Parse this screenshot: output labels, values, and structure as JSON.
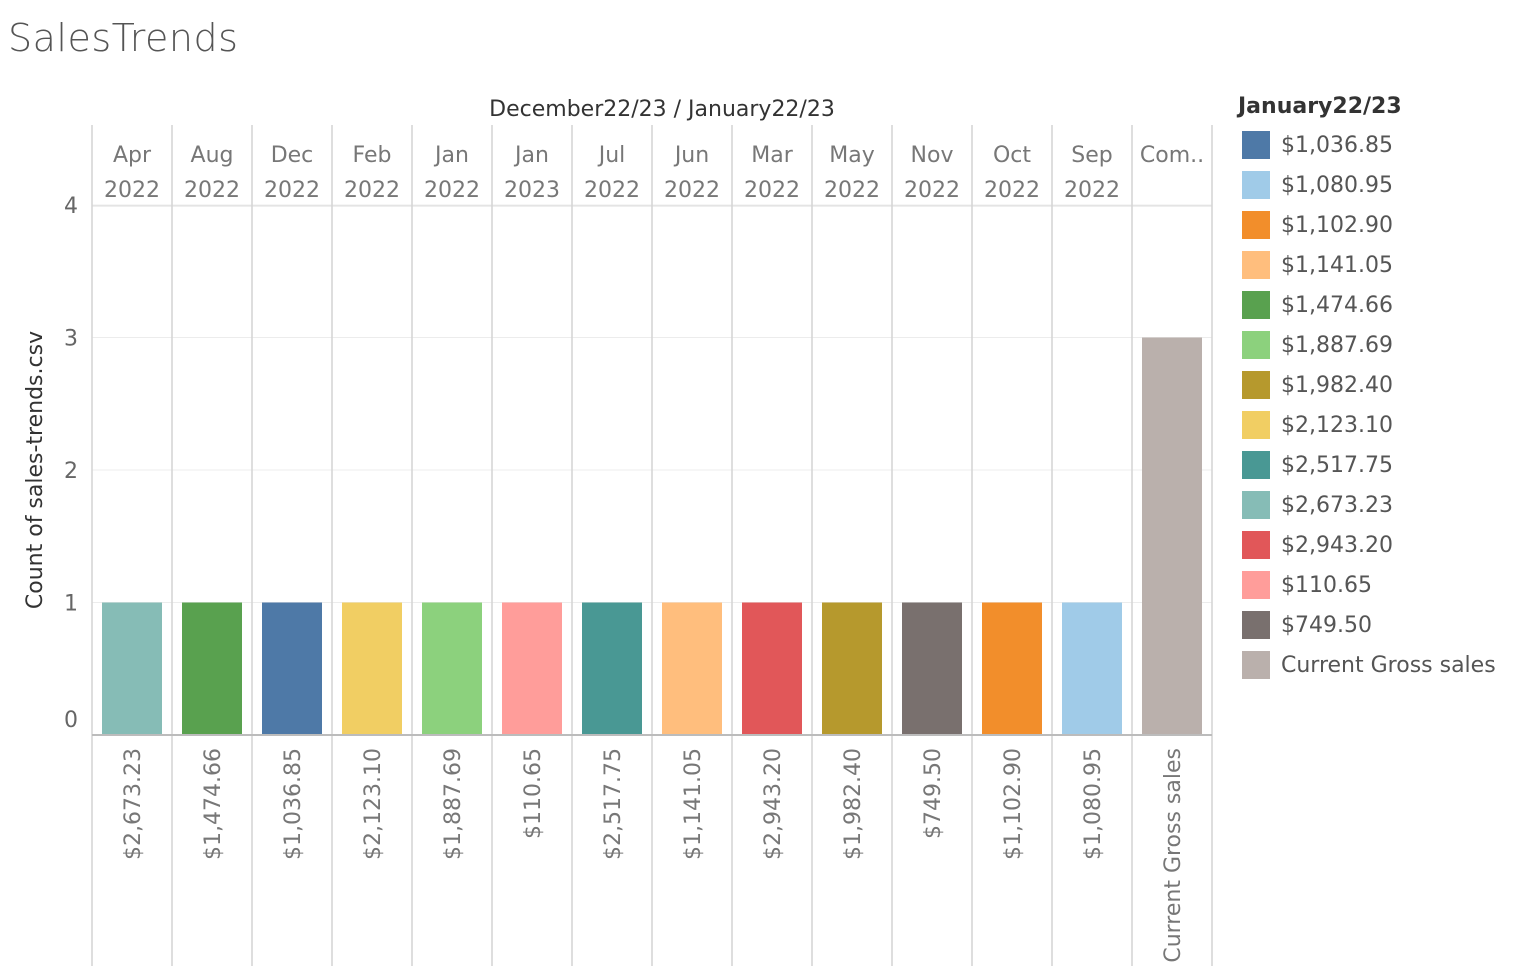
{
  "page": {
    "title": "SalesTrends"
  },
  "chart_data": {
    "type": "bar",
    "column_header_title": "December22/23  /  January22/23",
    "columns": [
      {
        "month": "Apr",
        "year": "2022",
        "label": "$2,673.23"
      },
      {
        "month": "Aug",
        "year": "2022",
        "label": "$1,474.66"
      },
      {
        "month": "Dec",
        "year": "2022",
        "label": "$1,036.85"
      },
      {
        "month": "Feb",
        "year": "2022",
        "label": "$2,123.10"
      },
      {
        "month": "Jan",
        "year": "2022",
        "label": "$1,887.69"
      },
      {
        "month": "Jan",
        "year": "2023",
        "label": "$110.65"
      },
      {
        "month": "Jul",
        "year": "2022",
        "label": "$2,517.75"
      },
      {
        "month": "Jun",
        "year": "2022",
        "label": "$1,141.05"
      },
      {
        "month": "Mar",
        "year": "2022",
        "label": "$2,943.20"
      },
      {
        "month": "May",
        "year": "2022",
        "label": "$1,982.40"
      },
      {
        "month": "Nov",
        "year": "2022",
        "label": "$749.50"
      },
      {
        "month": "Oct",
        "year": "2022",
        "label": "$1,102.90"
      },
      {
        "month": "Sep",
        "year": "2022",
        "label": "$1,080.95"
      },
      {
        "month": "Com..",
        "year": "",
        "label": "Current Gross sales"
      }
    ],
    "values": [
      1,
      1,
      1,
      1,
      1,
      1,
      1,
      1,
      1,
      1,
      1,
      1,
      1,
      3
    ],
    "ylabel": "Count of sales-trends.csv",
    "ylim": [
      0,
      4
    ],
    "yticks": [
      0,
      1,
      2,
      3,
      4
    ],
    "grid": true,
    "legend": {
      "title": "January22/23",
      "position": "right",
      "items": [
        {
          "label": "$1,036.85",
          "color": "#4e79a7"
        },
        {
          "label": "$1,080.95",
          "color": "#a0cbe8"
        },
        {
          "label": "$1,102.90",
          "color": "#f28e2b"
        },
        {
          "label": "$1,141.05",
          "color": "#ffbe7d"
        },
        {
          "label": "$1,474.66",
          "color": "#59a14f"
        },
        {
          "label": "$1,887.69",
          "color": "#8cd17d"
        },
        {
          "label": "$1,982.40",
          "color": "#b6992d"
        },
        {
          "label": "$2,123.10",
          "color": "#f1ce63"
        },
        {
          "label": "$2,517.75",
          "color": "#499894"
        },
        {
          "label": "$2,673.23",
          "color": "#86bcb6"
        },
        {
          "label": "$2,943.20",
          "color": "#e15759"
        },
        {
          "label": "$110.65",
          "color": "#ff9d9a"
        },
        {
          "label": "$749.50",
          "color": "#79706e"
        },
        {
          "label": "Current Gross sales",
          "color": "#bab0ac"
        }
      ]
    }
  }
}
